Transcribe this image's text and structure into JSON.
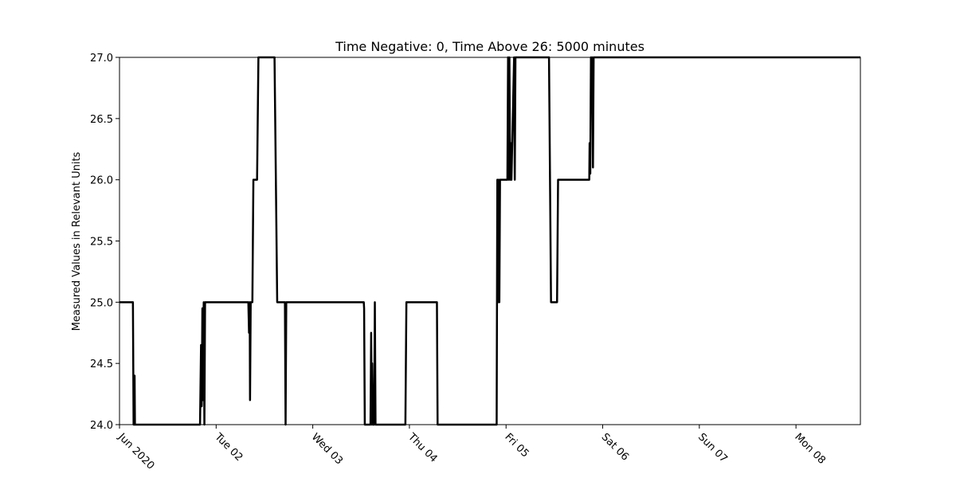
{
  "chart_data": {
    "type": "line",
    "title": "Time Negative: 0, Time Above 26: 5000 minutes",
    "xlabel": "",
    "ylabel": "Measured Values in Relevant Units",
    "x_range": [
      "2020-06-01T00:00",
      "2020-06-08T16:00"
    ],
    "ylim": [
      24.0,
      27.0
    ],
    "y_ticks": [
      "24.0",
      "24.5",
      "25.0",
      "25.5",
      "26.0",
      "26.5",
      "27.0"
    ],
    "y_tick_values": [
      24.0,
      24.5,
      25.0,
      25.5,
      26.0,
      26.5,
      27.0
    ],
    "x_ticks": [
      {
        "label": "Jun 2020",
        "t": "2020-06-01T00:00"
      },
      {
        "label": "Tue 02",
        "t": "2020-06-02T00:00"
      },
      {
        "label": "Wed 03",
        "t": "2020-06-03T00:00"
      },
      {
        "label": "Thu 04",
        "t": "2020-06-04T00:00"
      },
      {
        "label": "Fri 05",
        "t": "2020-06-05T00:00"
      },
      {
        "label": "Sat 06",
        "t": "2020-06-06T00:00"
      },
      {
        "label": "Sun 07",
        "t": "2020-06-07T00:00"
      },
      {
        "label": "Mon 08",
        "t": "2020-06-08T00:00"
      }
    ],
    "grid": false,
    "series": [
      {
        "color": "#000000",
        "points": [
          [
            "2020-06-01T00:00",
            25.0
          ],
          [
            "2020-06-01T03:20",
            25.0
          ],
          [
            "2020-06-01T03:30",
            24.0
          ],
          [
            "2020-06-01T03:40",
            24.0
          ],
          [
            "2020-06-01T03:45",
            24.4
          ],
          [
            "2020-06-01T03:50",
            24.0
          ],
          [
            "2020-06-01T04:00",
            24.0
          ],
          [
            "2020-06-01T20:00",
            24.0
          ],
          [
            "2020-06-01T20:15",
            24.65
          ],
          [
            "2020-06-01T20:25",
            24.15
          ],
          [
            "2020-06-01T20:35",
            24.95
          ],
          [
            "2020-06-01T20:45",
            24.2
          ],
          [
            "2020-06-01T20:55",
            25.0
          ],
          [
            "2020-06-01T21:05",
            24.0
          ],
          [
            "2020-06-01T21:15",
            25.0
          ],
          [
            "2020-06-02T08:00",
            25.0
          ],
          [
            "2020-06-02T08:10",
            24.75
          ],
          [
            "2020-06-02T08:20",
            25.0
          ],
          [
            "2020-06-02T08:25",
            24.2
          ],
          [
            "2020-06-02T08:35",
            25.0
          ],
          [
            "2020-06-02T09:00",
            25.0
          ],
          [
            "2020-06-02T09:15",
            26.0
          ],
          [
            "2020-06-02T10:10",
            26.0
          ],
          [
            "2020-06-02T10:30",
            27.0
          ],
          [
            "2020-06-02T14:30",
            27.0
          ],
          [
            "2020-06-02T14:50",
            26.0
          ],
          [
            "2020-06-02T15:10",
            25.0
          ],
          [
            "2020-06-02T17:05",
            25.0
          ],
          [
            "2020-06-02T17:15",
            24.0
          ],
          [
            "2020-06-02T17:25",
            25.0
          ],
          [
            "2020-06-03T12:40",
            25.0
          ],
          [
            "2020-06-03T12:45",
            24.95
          ],
          [
            "2020-06-03T12:55",
            24.0
          ],
          [
            "2020-06-03T14:20",
            24.0
          ],
          [
            "2020-06-03T14:30",
            24.75
          ],
          [
            "2020-06-03T14:40",
            24.0
          ],
          [
            "2020-06-03T14:45",
            24.5
          ],
          [
            "2020-06-03T14:55",
            24.0
          ],
          [
            "2020-06-03T15:15",
            24.0
          ],
          [
            "2020-06-03T15:25",
            25.0
          ],
          [
            "2020-06-03T15:35",
            24.0
          ],
          [
            "2020-06-03T23:00",
            24.0
          ],
          [
            "2020-06-03T23:15",
            25.0
          ],
          [
            "2020-06-04T06:50",
            25.0
          ],
          [
            "2020-06-04T07:00",
            24.0
          ],
          [
            "2020-06-04T21:40",
            24.0
          ],
          [
            "2020-06-04T21:50",
            26.0
          ],
          [
            "2020-06-04T22:00",
            25.0
          ],
          [
            "2020-06-04T22:10",
            26.0
          ],
          [
            "2020-06-04T22:20",
            25.0
          ],
          [
            "2020-06-04T22:30",
            26.0
          ],
          [
            "2020-06-05T00:20",
            26.0
          ],
          [
            "2020-06-05T00:30",
            27.0
          ],
          [
            "2020-06-05T00:40",
            26.0
          ],
          [
            "2020-06-05T00:50",
            27.0
          ],
          [
            "2020-06-05T01:00",
            26.0
          ],
          [
            "2020-06-05T01:10",
            26.3
          ],
          [
            "2020-06-05T01:20",
            26.0
          ],
          [
            "2020-06-05T02:00",
            27.0
          ],
          [
            "2020-06-05T02:10",
            26.0
          ],
          [
            "2020-06-05T02:20",
            27.0
          ],
          [
            "2020-06-05T10:40",
            27.0
          ],
          [
            "2020-06-05T10:55",
            26.0
          ],
          [
            "2020-06-05T11:10",
            25.0
          ],
          [
            "2020-06-05T12:40",
            25.0
          ],
          [
            "2020-06-05T12:55",
            26.0
          ],
          [
            "2020-06-05T20:40",
            26.0
          ],
          [
            "2020-06-05T20:45",
            26.3
          ],
          [
            "2020-06-05T20:55",
            26.05
          ],
          [
            "2020-06-05T21:05",
            27.0
          ],
          [
            "2020-06-05T21:15",
            26.6
          ],
          [
            "2020-06-05T21:25",
            27.0
          ],
          [
            "2020-06-05T21:35",
            26.1
          ],
          [
            "2020-06-05T21:45",
            27.0
          ],
          [
            "2020-06-08T16:00",
            27.0
          ]
        ]
      }
    ]
  }
}
